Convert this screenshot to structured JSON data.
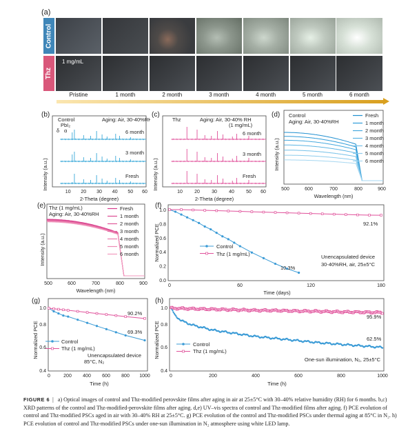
{
  "panel_a": {
    "label": "(a)",
    "rows": [
      {
        "label": "Control",
        "color": "#3f86b8"
      },
      {
        "label": "Thz",
        "color": "#d9577a",
        "note": "1 mg/mL"
      }
    ],
    "timeline": [
      "Pristine",
      "1 month",
      "2 month",
      "3 month",
      "4 month",
      "5 month",
      "6 month"
    ]
  },
  "chart_data": [
    {
      "panel": "(b)",
      "type": "line",
      "title": "Aging: Air, 30-40%RH",
      "annotations": [
        "Control",
        "PbI₂",
        "δ",
        "α"
      ],
      "series_labels": [
        "6 month",
        "3 month",
        "Fresh"
      ],
      "xlabel": "2-Theta (degree)",
      "ylabel": "Intensity (a.u.)",
      "xlim": [
        0,
        60
      ],
      "xticks": [
        "10",
        "20",
        "30",
        "40",
        "50",
        "60"
      ],
      "peaks_deg": [
        12.7,
        14.1,
        20.0,
        24.5,
        28.3,
        31.8,
        35.0,
        40.5,
        43.0,
        50.0
      ],
      "color": "#38a8d8"
    },
    {
      "panel": "(c)",
      "type": "line",
      "title": "Aging: Air, 30-40% RH",
      "subtitle": "(1 mg/mL)",
      "annotations": [
        "Thz"
      ],
      "series_labels": [
        "6 month",
        "3 month",
        "Fresh"
      ],
      "xlabel": "2-Theta (degree)",
      "ylabel": "Intensity (a.u.)",
      "xlim": [
        0,
        60
      ],
      "xticks": [
        "10",
        "20",
        "30",
        "40",
        "50",
        "60"
      ],
      "peaks_deg": [
        14.1,
        20.0,
        24.5,
        28.3,
        31.8,
        35.0,
        40.5,
        43.0,
        50.0
      ],
      "color": "#e0509a"
    },
    {
      "panel": "(d)",
      "type": "line",
      "title": "Control",
      "subtitle": "Aging: Air, 30-40%RH",
      "xlabel": "Wavelength (nm)",
      "ylabel": "Intensity (a.u.)",
      "xlim": [
        500,
        900
      ],
      "xticks": [
        "500",
        "600",
        "700",
        "800",
        "900"
      ],
      "edge_nm": 790,
      "series": [
        {
          "name": "Fresh",
          "level": 1.0
        },
        {
          "name": "1 month",
          "level": 0.9
        },
        {
          "name": "2 month",
          "level": 0.8
        },
        {
          "name": "3 month",
          "level": 0.68
        },
        {
          "name": "4 month",
          "level": 0.55
        },
        {
          "name": "5 month",
          "level": 0.42
        },
        {
          "name": "6 month",
          "level": 0.3
        }
      ],
      "color": "#38a8d8"
    },
    {
      "panel": "(e)",
      "type": "line",
      "title": "Thz (1 mg/mL)",
      "subtitle": "Aging: Air, 30-40%RH",
      "xlabel": "Wavelength (nm)",
      "ylabel": "Intensity (a.u.)",
      "xlim": [
        500,
        900
      ],
      "xticks": [
        "500",
        "600",
        "700",
        "800",
        "900"
      ],
      "edge_nm": 790,
      "series": [
        {
          "name": "Fresh",
          "level": 1.0
        },
        {
          "name": "1 month",
          "level": 0.99
        },
        {
          "name": "2 month",
          "level": 0.98
        },
        {
          "name": "3 month",
          "level": 0.97
        },
        {
          "name": "4 month",
          "level": 0.96
        },
        {
          "name": "5 month",
          "level": 0.95
        },
        {
          "name": "6 month",
          "level": 0.94
        }
      ],
      "color": "#e0509a"
    },
    {
      "panel": "(f)",
      "type": "line",
      "xlabel": "Time (days)",
      "ylabel": "Normalized PCE",
      "xlim": [
        0,
        180
      ],
      "ylim": [
        0,
        1.0
      ],
      "xticks": [
        0,
        60,
        120,
        180
      ],
      "yticks": [
        "0.0",
        "0.2",
        "0.4",
        "0.6",
        "0.8",
        "1.0"
      ],
      "annotation": [
        "Unencapsulated device",
        "30-40%RH, air, 25±5°C"
      ],
      "series": [
        {
          "name": "Control",
          "color": "#3b9bd6",
          "end_label": "10.3%",
          "x": [
            0,
            5,
            10,
            15,
            20,
            25,
            30,
            35,
            40,
            45,
            50,
            55,
            60,
            70,
            80,
            90,
            100,
            110
          ],
          "y": [
            1.0,
            0.97,
            0.93,
            0.89,
            0.85,
            0.81,
            0.76,
            0.72,
            0.67,
            0.62,
            0.58,
            0.53,
            0.48,
            0.39,
            0.31,
            0.23,
            0.16,
            0.103
          ]
        },
        {
          "name": "Thz (1 mg/mL)",
          "color": "#e0509a",
          "end_label": "92.1%",
          "x": [
            0,
            10,
            20,
            30,
            40,
            50,
            60,
            70,
            80,
            90,
            100,
            110,
            120,
            130,
            140,
            150,
            160,
            170,
            180
          ],
          "y": [
            1.0,
            1.0,
            0.995,
            0.99,
            0.985,
            0.98,
            0.975,
            0.97,
            0.965,
            0.96,
            0.955,
            0.95,
            0.945,
            0.94,
            0.935,
            0.93,
            0.925,
            0.922,
            0.921
          ]
        }
      ]
    },
    {
      "panel": "(g)",
      "type": "line",
      "xlabel": "Time (h)",
      "ylabel": "Normalized PCE",
      "xlim": [
        0,
        1000
      ],
      "ylim": [
        0.4,
        1.0
      ],
      "xticks": [
        0,
        200,
        400,
        600,
        800,
        1000
      ],
      "yticks": [
        "0.4",
        "0.6",
        "0.8",
        "1.0"
      ],
      "annotation": [
        "Unencapsulated device",
        "85°C, N₂"
      ],
      "series": [
        {
          "name": "Control",
          "color": "#3b9bd6",
          "end_label": "69.3%",
          "x": [
            0,
            50,
            100,
            150,
            200,
            300,
            400,
            500,
            600,
            700,
            800,
            1000
          ],
          "y": [
            1.0,
            0.97,
            0.95,
            0.93,
            0.92,
            0.89,
            0.86,
            0.83,
            0.8,
            0.77,
            0.74,
            0.693
          ]
        },
        {
          "name": "Thz (1 mg/mL)",
          "color": "#e0509a",
          "end_label": "90.2%",
          "x": [
            0,
            50,
            100,
            150,
            200,
            300,
            400,
            500,
            600,
            700,
            800,
            1000
          ],
          "y": [
            1.0,
            0.995,
            0.99,
            0.985,
            0.98,
            0.97,
            0.96,
            0.95,
            0.94,
            0.93,
            0.92,
            0.902
          ]
        }
      ]
    },
    {
      "panel": "(h)",
      "type": "line",
      "xlabel": "Time (h)",
      "ylabel": "Normalized PCE",
      "xlim": [
        0,
        1000
      ],
      "ylim": [
        0.4,
        1.0
      ],
      "xticks": [
        0,
        200,
        400,
        600,
        800,
        1000
      ],
      "yticks": [
        "0.4",
        "0.6",
        "0.8",
        "1.0"
      ],
      "annotation": [
        "One-sun illumination, N₂, 25±5°C"
      ],
      "series": [
        {
          "name": "Control",
          "color": "#3b9bd6",
          "end_label": "62.5%",
          "x": [
            0,
            20,
            50,
            100,
            200,
            300,
            400,
            500,
            600,
            700,
            800,
            900,
            1000
          ],
          "y": [
            1.0,
            0.93,
            0.88,
            0.84,
            0.79,
            0.76,
            0.73,
            0.71,
            0.69,
            0.67,
            0.655,
            0.64,
            0.625
          ]
        },
        {
          "name": "Thz (1 mg/mL)",
          "color": "#e0509a",
          "end_label": "95.9%",
          "x": [
            0,
            100,
            200,
            300,
            400,
            500,
            600,
            700,
            800,
            900,
            1000
          ],
          "y": [
            1.0,
            0.995,
            0.99,
            0.985,
            0.98,
            0.978,
            0.973,
            0.97,
            0.965,
            0.962,
            0.959
          ]
        }
      ]
    }
  ],
  "caption": {
    "label": "FIGURE 6",
    "text": "a) Optical images of control and Thz-modified perovskite films after aging in air at 25±5°C with 30–40% relative humidity (RH) for 6 months. b,c) XRD patterns of the control and Thz-modified-perovskite films after aging. d,e) UV–vis spectra of control and Thz-modified films after aging. f) PCE evolution of control and Thz-modified PSCs aged in air with 30–40% RH at 25±5°C. g) PCE evolution of the control and Thz-modified PSCs under thermal aging at 85°C in N₂. h) PCE evolution of control and Thz-modified PSCs under one-sun illumination in N₂ atmosphere using white LED lamp."
  }
}
